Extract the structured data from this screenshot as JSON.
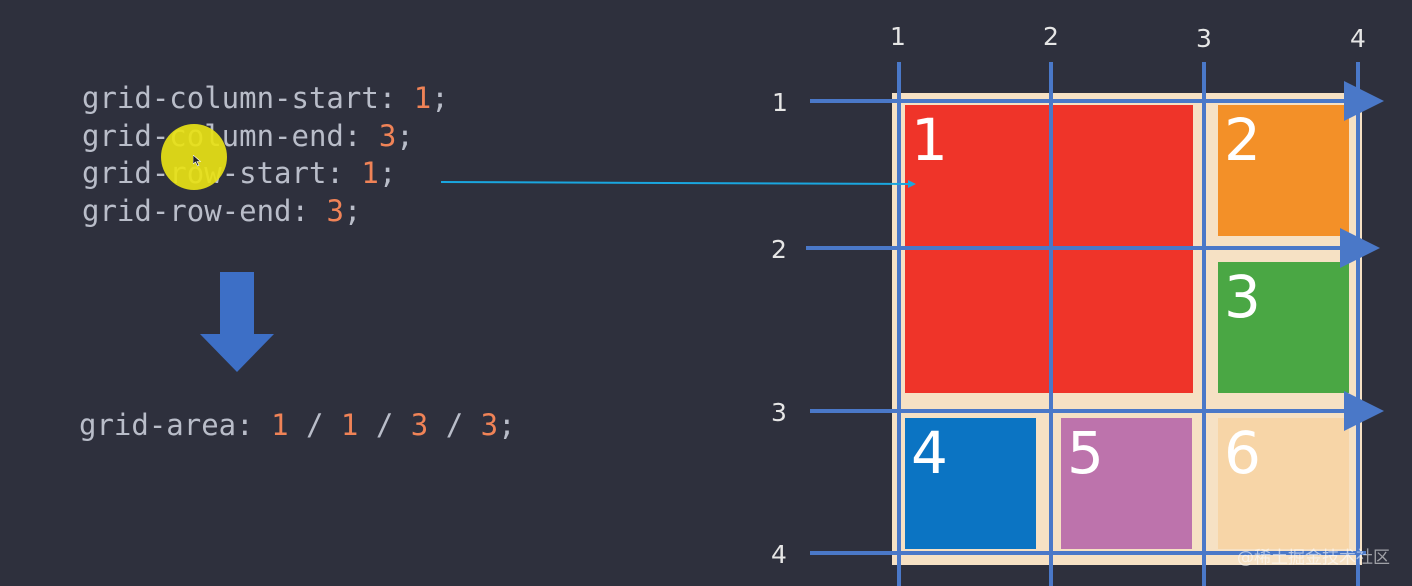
{
  "code": {
    "lines": [
      {
        "prop": "grid-column-start: ",
        "value": "1",
        "end": ";"
      },
      {
        "prop": "grid-column-end: ",
        "value": "3",
        "end": ";"
      },
      {
        "prop": "grid-row-start: ",
        "value": "1",
        "end": ";"
      },
      {
        "prop": "grid-row-end: ",
        "value": "3",
        "end": ";"
      }
    ],
    "shorthand": {
      "prop": "grid-area: ",
      "v1": "1",
      "sep1": " / ",
      "v2": "1",
      "sep2": " / ",
      "v3": "3",
      "sep3": " / ",
      "v4": "3",
      "end": ";"
    }
  },
  "diagram": {
    "column_lines": [
      "1",
      "2",
      "3",
      "4"
    ],
    "row_lines": [
      "1",
      "2",
      "3",
      "4"
    ],
    "items": [
      {
        "label": "1",
        "color": "#ef3429"
      },
      {
        "label": "2",
        "color": "#f39028"
      },
      {
        "label": "3",
        "color": "#4aa744"
      },
      {
        "label": "4",
        "color": "#0b74c3"
      },
      {
        "label": "5",
        "color": "#bd73ac"
      },
      {
        "label": "6",
        "color": "#f7d5a7"
      }
    ],
    "line_color": "#4a78c8",
    "connector_color": "#1aa6df"
  },
  "watermark": "@稀土掘金技术社区"
}
